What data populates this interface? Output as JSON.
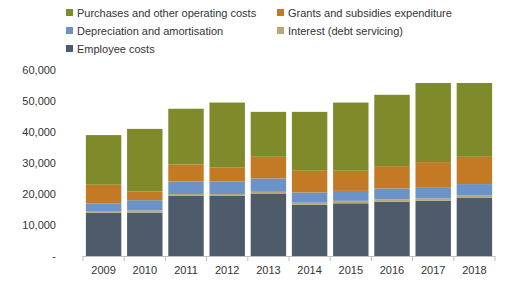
{
  "chart_data": {
    "type": "bar",
    "stacked": true,
    "grid": false,
    "legend": "top",
    "categories": [
      "2009",
      "2010",
      "2011",
      "2012",
      "2013",
      "2014",
      "2015",
      "2016",
      "2017",
      "2018"
    ],
    "series": [
      {
        "name": "Employee costs",
        "color": "#4d5b6b",
        "values": [
          14000,
          14000,
          19500,
          19500,
          20000,
          16500,
          17000,
          17500,
          17800,
          18700
        ]
      },
      {
        "name": "Interest (debt servicing)",
        "color": "#b5a97a",
        "values": [
          500,
          700,
          500,
          500,
          700,
          700,
          800,
          800,
          800,
          800
        ]
      },
      {
        "name": "Depreciation and amortisation",
        "color": "#6b93c7",
        "values": [
          2500,
          3300,
          4000,
          4000,
          4300,
          3300,
          3200,
          3500,
          3400,
          3700
        ]
      },
      {
        "name": "Grants and subsidies expenditure",
        "color": "#c47a25",
        "values": [
          6000,
          2800,
          5500,
          4500,
          7000,
          7000,
          6500,
          7200,
          8300,
          8800
        ]
      },
      {
        "name": "Purchases and other operating costs",
        "color": "#7f8a2a",
        "values": [
          16000,
          20200,
          18000,
          21000,
          14500,
          19000,
          22000,
          23000,
          25500,
          23800
        ]
      }
    ],
    "ylim": [
      0,
      60000
    ],
    "yticks": [
      {
        "value": 0,
        "label": "-"
      },
      {
        "value": 10000,
        "label": "10,000"
      },
      {
        "value": 20000,
        "label": "20,000"
      },
      {
        "value": 30000,
        "label": "30,000"
      },
      {
        "value": 40000,
        "label": "40,000"
      },
      {
        "value": 50000,
        "label": "50,000"
      },
      {
        "value": 60000,
        "label": "60,000"
      }
    ]
  }
}
